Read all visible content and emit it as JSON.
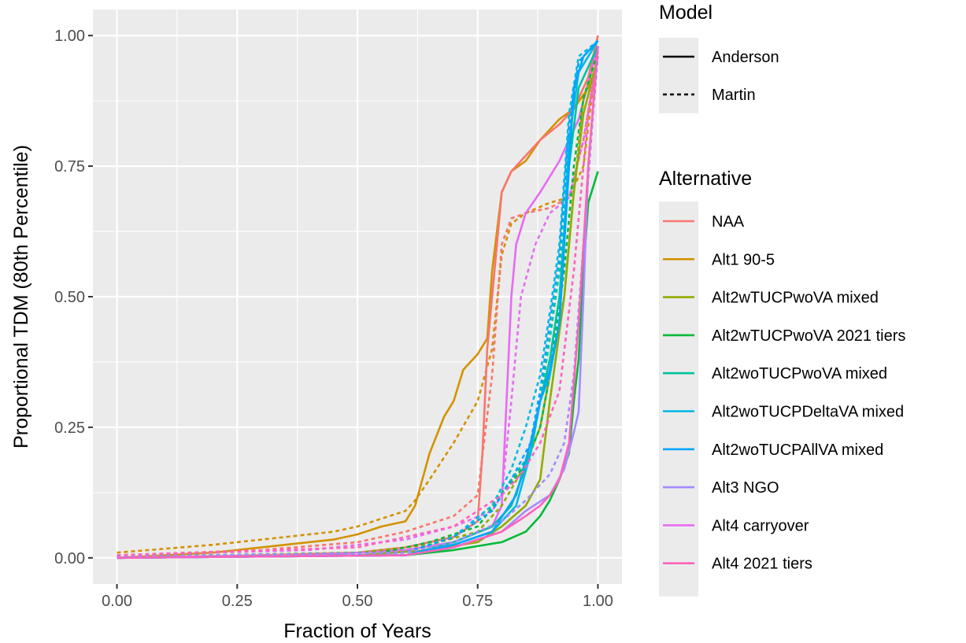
{
  "chart_data": {
    "type": "line",
    "title": "",
    "xlabel": "Fraction of Years",
    "ylabel": "Proportional TDM (80th Percentile)",
    "xlim": [
      -0.05,
      1.05
    ],
    "ylim": [
      -0.05,
      1.05
    ],
    "x_ticks": [
      "0.00",
      "0.25",
      "0.50",
      "0.75",
      "1.00"
    ],
    "y_ticks": [
      "0.00",
      "0.25",
      "0.50",
      "0.75",
      "1.00"
    ],
    "grid": true,
    "legend_position": "right",
    "legends": {
      "model": {
        "title": "Model",
        "entries": [
          {
            "label": "Anderson",
            "linetype": "solid"
          },
          {
            "label": "Martin",
            "linetype": "dashed"
          }
        ]
      },
      "alternative": {
        "title": "Alternative",
        "entries": [
          {
            "label": "NAA",
            "color": "#F8766D"
          },
          {
            "label": "Alt1 90-5",
            "color": "#D39200"
          },
          {
            "label": "Alt2wTUCPwoVA mixed",
            "color": "#93AA00"
          },
          {
            "label": "Alt2wTUCPwoVA 2021 tiers",
            "color": "#00BA38"
          },
          {
            "label": "Alt2woTUCPwoVA mixed",
            "color": "#00C19F"
          },
          {
            "label": "Alt2woTUCPDeltaVA mixed",
            "color": "#00B9E3"
          },
          {
            "label": "Alt2woTUCPAllVA mixed",
            "color": "#00A5FF"
          },
          {
            "label": "Alt3 NGO",
            "color": "#A58AFF"
          },
          {
            "label": "Alt4 carryover",
            "color": "#E76BF3"
          },
          {
            "label": "Alt4 2021 tiers",
            "color": "#FF62BC"
          }
        ]
      }
    },
    "series": [
      {
        "alternative": "Alt1 90-5",
        "model": "Anderson",
        "color": "#D39200",
        "dashed": false,
        "x": [
          0,
          0.2,
          0.35,
          0.45,
          0.5,
          0.55,
          0.6,
          0.62,
          0.65,
          0.68,
          0.7,
          0.72,
          0.75,
          0.77,
          0.78,
          0.8,
          0.82,
          0.85,
          0.88,
          0.92,
          0.95,
          0.98,
          1.0
        ],
        "y": [
          0,
          0.01,
          0.025,
          0.035,
          0.045,
          0.06,
          0.07,
          0.1,
          0.2,
          0.27,
          0.3,
          0.36,
          0.39,
          0.42,
          0.55,
          0.7,
          0.74,
          0.76,
          0.8,
          0.84,
          0.86,
          0.9,
          1.0
        ]
      },
      {
        "alternative": "Alt1 90-5",
        "model": "Martin",
        "color": "#D39200",
        "dashed": true,
        "x": [
          0,
          0.2,
          0.35,
          0.45,
          0.5,
          0.55,
          0.6,
          0.62,
          0.65,
          0.7,
          0.75,
          0.78,
          0.8,
          0.82,
          0.85,
          0.9,
          0.94,
          0.97,
          1.0
        ],
        "y": [
          0.01,
          0.025,
          0.04,
          0.05,
          0.06,
          0.075,
          0.09,
          0.11,
          0.15,
          0.22,
          0.3,
          0.4,
          0.58,
          0.64,
          0.66,
          0.68,
          0.69,
          0.75,
          0.98
        ]
      },
      {
        "alternative": "NAA",
        "model": "Anderson",
        "color": "#F8766D",
        "dashed": false,
        "x": [
          0,
          0.3,
          0.5,
          0.6,
          0.7,
          0.75,
          0.76,
          0.77,
          0.78,
          0.79,
          0.8,
          0.82,
          0.85,
          0.88,
          0.92,
          0.95,
          0.98,
          1.0
        ],
        "y": [
          0,
          0.005,
          0.01,
          0.02,
          0.04,
          0.07,
          0.2,
          0.4,
          0.5,
          0.6,
          0.7,
          0.74,
          0.77,
          0.8,
          0.83,
          0.86,
          0.92,
          1.0
        ]
      },
      {
        "alternative": "NAA",
        "model": "Martin",
        "color": "#F8766D",
        "dashed": true,
        "x": [
          0,
          0.3,
          0.5,
          0.6,
          0.7,
          0.75,
          0.78,
          0.8,
          0.82,
          0.85,
          0.9,
          0.94,
          0.97,
          1.0
        ],
        "y": [
          0.005,
          0.015,
          0.03,
          0.05,
          0.08,
          0.12,
          0.35,
          0.6,
          0.65,
          0.66,
          0.67,
          0.69,
          0.8,
          0.97
        ]
      },
      {
        "alternative": "Alt4 carryover",
        "model": "Anderson",
        "color": "#E76BF3",
        "dashed": false,
        "x": [
          0,
          0.4,
          0.6,
          0.7,
          0.78,
          0.8,
          0.81,
          0.82,
          0.83,
          0.85,
          0.88,
          0.92,
          0.96,
          1.0
        ],
        "y": [
          0,
          0.005,
          0.015,
          0.03,
          0.06,
          0.1,
          0.3,
          0.5,
          0.6,
          0.66,
          0.7,
          0.76,
          0.84,
          0.98
        ]
      },
      {
        "alternative": "Alt4 carryover",
        "model": "Martin",
        "color": "#E76BF3",
        "dashed": true,
        "x": [
          0,
          0.4,
          0.6,
          0.7,
          0.78,
          0.8,
          0.82,
          0.84,
          0.87,
          0.9,
          0.94,
          0.97,
          1.0
        ],
        "y": [
          0.005,
          0.015,
          0.035,
          0.06,
          0.09,
          0.12,
          0.3,
          0.5,
          0.6,
          0.66,
          0.69,
          0.8,
          0.97
        ]
      },
      {
        "alternative": "Alt2wTUCPwoVA mixed",
        "model": "Anderson",
        "color": "#93AA00",
        "dashed": false,
        "x": [
          0,
          0.5,
          0.65,
          0.75,
          0.8,
          0.85,
          0.88,
          0.9,
          0.93,
          0.95,
          0.97,
          1.0
        ],
        "y": [
          0,
          0.005,
          0.015,
          0.03,
          0.06,
          0.1,
          0.15,
          0.3,
          0.5,
          0.7,
          0.85,
          0.96
        ]
      },
      {
        "alternative": "Alt2wTUCPwoVA mixed",
        "model": "Martin",
        "color": "#93AA00",
        "dashed": true,
        "x": [
          0,
          0.5,
          0.65,
          0.75,
          0.8,
          0.85,
          0.88,
          0.9,
          0.93,
          0.95,
          0.97,
          1.0
        ],
        "y": [
          0.002,
          0.01,
          0.025,
          0.05,
          0.1,
          0.18,
          0.25,
          0.35,
          0.5,
          0.7,
          0.88,
          0.95
        ]
      },
      {
        "alternative": "Alt2wTUCPwoVA 2021 tiers",
        "model": "Anderson",
        "color": "#00BA38",
        "dashed": false,
        "x": [
          0,
          0.6,
          0.7,
          0.8,
          0.85,
          0.88,
          0.9,
          0.92,
          0.94,
          0.95,
          0.96,
          0.97,
          0.98,
          1.0
        ],
        "y": [
          0,
          0.005,
          0.015,
          0.03,
          0.05,
          0.08,
          0.11,
          0.15,
          0.2,
          0.3,
          0.38,
          0.55,
          0.68,
          0.74
        ]
      },
      {
        "alternative": "Alt2wTUCPwoVA 2021 tiers",
        "model": "Martin",
        "color": "#00BA38",
        "dashed": true,
        "x": [
          0,
          0.55,
          0.65,
          0.75,
          0.8,
          0.85,
          0.88,
          0.9,
          0.93,
          0.95,
          0.97,
          1.0
        ],
        "y": [
          0.002,
          0.01,
          0.03,
          0.06,
          0.12,
          0.18,
          0.25,
          0.35,
          0.55,
          0.75,
          0.88,
          0.97
        ]
      },
      {
        "alternative": "Alt2woTUCPwoVA mixed",
        "model": "Anderson",
        "color": "#00C19F",
        "dashed": false,
        "x": [
          0,
          0.6,
          0.7,
          0.78,
          0.82,
          0.86,
          0.88,
          0.9,
          0.92,
          0.94,
          0.96,
          1.0
        ],
        "y": [
          0,
          0.005,
          0.03,
          0.06,
          0.1,
          0.2,
          0.3,
          0.38,
          0.5,
          0.75,
          0.9,
          0.98
        ]
      },
      {
        "alternative": "Alt2woTUCPwoVA mixed",
        "model": "Martin",
        "color": "#00C19F",
        "dashed": true,
        "x": [
          0,
          0.6,
          0.7,
          0.78,
          0.82,
          0.86,
          0.88,
          0.9,
          0.92,
          0.94,
          0.96,
          1.0
        ],
        "y": [
          0.002,
          0.01,
          0.04,
          0.1,
          0.15,
          0.2,
          0.3,
          0.42,
          0.55,
          0.8,
          0.95,
          0.99
        ]
      },
      {
        "alternative": "Alt2woTUCPDeltaVA mixed",
        "model": "Anderson",
        "color": "#00B9E3",
        "dashed": false,
        "x": [
          0,
          0.6,
          0.7,
          0.78,
          0.83,
          0.86,
          0.88,
          0.9,
          0.92,
          0.94,
          0.96,
          1.0
        ],
        "y": [
          0,
          0.005,
          0.025,
          0.05,
          0.1,
          0.2,
          0.3,
          0.35,
          0.45,
          0.8,
          0.93,
          0.99
        ]
      },
      {
        "alternative": "Alt2woTUCPDeltaVA mixed",
        "model": "Martin",
        "color": "#00B9E3",
        "dashed": true,
        "x": [
          0,
          0.6,
          0.7,
          0.78,
          0.82,
          0.85,
          0.88,
          0.9,
          0.92,
          0.94,
          0.96,
          1.0
        ],
        "y": [
          0.002,
          0.01,
          0.04,
          0.1,
          0.17,
          0.25,
          0.35,
          0.47,
          0.6,
          0.85,
          0.96,
          0.99
        ]
      },
      {
        "alternative": "Alt2woTUCPAllVA mixed",
        "model": "Anderson",
        "color": "#00A5FF",
        "dashed": false,
        "x": [
          0,
          0.6,
          0.7,
          0.78,
          0.83,
          0.86,
          0.88,
          0.9,
          0.92,
          0.93,
          0.95,
          0.97,
          1.0
        ],
        "y": [
          0,
          0.005,
          0.025,
          0.05,
          0.12,
          0.22,
          0.3,
          0.36,
          0.45,
          0.6,
          0.9,
          0.96,
          0.99
        ]
      },
      {
        "alternative": "Alt2woTUCPAllVA mixed",
        "model": "Martin",
        "color": "#00A5FF",
        "dashed": true,
        "x": [
          0,
          0.6,
          0.7,
          0.78,
          0.82,
          0.86,
          0.88,
          0.9,
          0.92,
          0.94,
          0.96,
          1.0
        ],
        "y": [
          0.002,
          0.01,
          0.04,
          0.09,
          0.15,
          0.22,
          0.32,
          0.45,
          0.58,
          0.83,
          0.95,
          0.99
        ]
      },
      {
        "alternative": "Alt3 NGO",
        "model": "Anderson",
        "color": "#A58AFF",
        "dashed": false,
        "x": [
          0,
          0.6,
          0.7,
          0.8,
          0.85,
          0.9,
          0.93,
          0.95,
          0.96,
          0.97,
          0.98,
          1.0
        ],
        "y": [
          0,
          0.005,
          0.02,
          0.05,
          0.09,
          0.12,
          0.17,
          0.24,
          0.28,
          0.5,
          0.75,
          0.98
        ]
      },
      {
        "alternative": "Alt3 NGO",
        "model": "Martin",
        "color": "#A58AFF",
        "dashed": true,
        "x": [
          0,
          0.6,
          0.7,
          0.8,
          0.85,
          0.9,
          0.93,
          0.95,
          0.97,
          0.99,
          1.0
        ],
        "y": [
          0.002,
          0.01,
          0.03,
          0.07,
          0.11,
          0.16,
          0.22,
          0.35,
          0.6,
          0.85,
          0.96
        ]
      },
      {
        "alternative": "Alt4 2021 tiers",
        "model": "Anderson",
        "color": "#FF62BC",
        "dashed": false,
        "x": [
          0,
          0.6,
          0.7,
          0.8,
          0.85,
          0.88,
          0.9,
          0.92,
          0.94,
          0.96,
          0.98,
          1.0
        ],
        "y": [
          0,
          0.005,
          0.02,
          0.05,
          0.08,
          0.1,
          0.12,
          0.15,
          0.22,
          0.45,
          0.75,
          0.98
        ]
      },
      {
        "alternative": "Alt4 2021 tiers",
        "model": "Martin",
        "color": "#FF62BC",
        "dashed": true,
        "x": [
          0,
          0.5,
          0.6,
          0.7,
          0.75,
          0.8,
          0.84,
          0.88,
          0.92,
          0.95,
          0.98,
          1.0
        ],
        "y": [
          0.005,
          0.02,
          0.04,
          0.06,
          0.09,
          0.12,
          0.16,
          0.22,
          0.32,
          0.55,
          0.85,
          0.96
        ]
      }
    ]
  }
}
